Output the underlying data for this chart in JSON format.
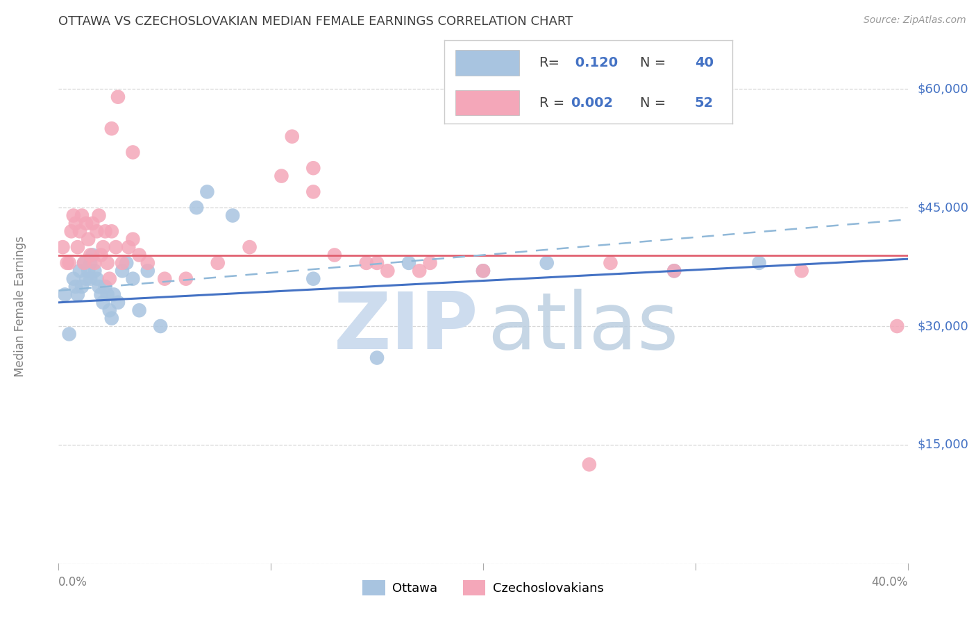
{
  "title": "OTTAWA VS CZECHOSLOVAKIAN MEDIAN FEMALE EARNINGS CORRELATION CHART",
  "source": "Source: ZipAtlas.com",
  "ylabel": "Median Female Earnings",
  "xlim": [
    0.0,
    0.4
  ],
  "ylim": [
    0,
    65000
  ],
  "ottawa_color": "#a8c4e0",
  "czech_color": "#f4a7b9",
  "trend_blue": "#4472c4",
  "trend_pink": "#e06070",
  "trend_dash_color": "#90b8d8",
  "background_color": "#ffffff",
  "grid_color": "#d8d8d8",
  "title_color": "#404040",
  "right_label_color": "#4472c4",
  "source_color": "#999999",
  "axis_label_color": "#808080",
  "ottawa_x": [
    0.003,
    0.005,
    0.007,
    0.008,
    0.009,
    0.01,
    0.011,
    0.012,
    0.013,
    0.014,
    0.015,
    0.015,
    0.016,
    0.017,
    0.018,
    0.019,
    0.02,
    0.021,
    0.022,
    0.023,
    0.024,
    0.025,
    0.026,
    0.028,
    0.03,
    0.032,
    0.035,
    0.038,
    0.042,
    0.048,
    0.065,
    0.07,
    0.082,
    0.12,
    0.15,
    0.165,
    0.2,
    0.23,
    0.29,
    0.33
  ],
  "ottawa_y": [
    34000,
    29000,
    36000,
    35000,
    34000,
    37000,
    35000,
    38000,
    36000,
    37000,
    38000,
    36000,
    39000,
    37000,
    36000,
    35000,
    34000,
    33000,
    35000,
    34000,
    32000,
    31000,
    34000,
    33000,
    37000,
    38000,
    36000,
    32000,
    37000,
    30000,
    45000,
    47000,
    44000,
    36000,
    26000,
    38000,
    37000,
    38000,
    37000,
    38000
  ],
  "czech_x": [
    0.002,
    0.004,
    0.005,
    0.006,
    0.007,
    0.008,
    0.009,
    0.01,
    0.011,
    0.012,
    0.013,
    0.014,
    0.015,
    0.016,
    0.017,
    0.018,
    0.019,
    0.02,
    0.021,
    0.022,
    0.023,
    0.024,
    0.025,
    0.027,
    0.03,
    0.033,
    0.035,
    0.038,
    0.042,
    0.05,
    0.06,
    0.075,
    0.09,
    0.105,
    0.12,
    0.13,
    0.145,
    0.155,
    0.175,
    0.2,
    0.025,
    0.028,
    0.035,
    0.11,
    0.12,
    0.15,
    0.17,
    0.26,
    0.29,
    0.35,
    0.25,
    0.395
  ],
  "czech_y": [
    40000,
    38000,
    38000,
    42000,
    44000,
    43000,
    40000,
    42000,
    44000,
    38000,
    43000,
    41000,
    39000,
    43000,
    38000,
    42000,
    44000,
    39000,
    40000,
    42000,
    38000,
    36000,
    42000,
    40000,
    38000,
    40000,
    41000,
    39000,
    38000,
    36000,
    36000,
    38000,
    40000,
    49000,
    47000,
    39000,
    38000,
    37000,
    38000,
    37000,
    55000,
    59000,
    52000,
    54000,
    50000,
    38000,
    37000,
    38000,
    37000,
    37000,
    12500,
    30000
  ],
  "trend_blue_y0": 33000,
  "trend_blue_y1": 38500,
  "trend_pink_y0": 39000,
  "trend_pink_y1": 39000,
  "trend_dash_y0": 34500,
  "trend_dash_y1": 43500
}
